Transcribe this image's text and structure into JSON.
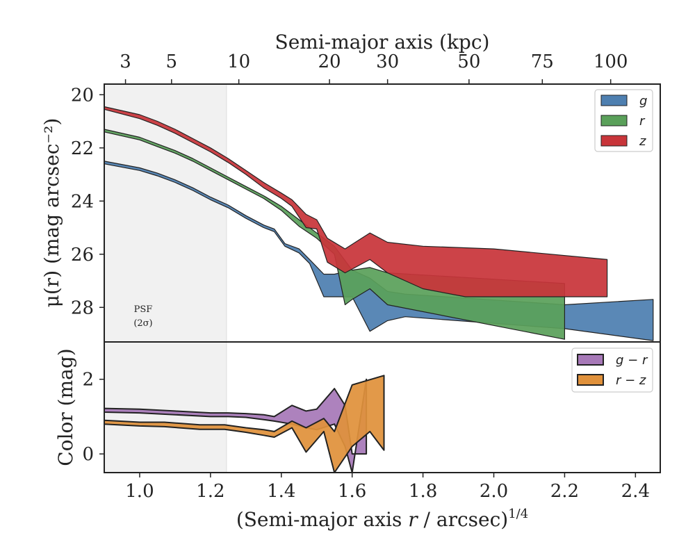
{
  "chart_data": [
    {
      "type": "area",
      "panel": "surface-brightness",
      "ylabel": "μ(r) (mag arcsec⁻²)",
      "top_xlabel": "Semi-major axis (kpc)",
      "top_ticks_kpc": [
        3,
        5,
        10,
        20,
        30,
        50,
        75,
        100
      ],
      "ylim": [
        29.3,
        19.6
      ],
      "y_inverted": true,
      "yticks": [
        20,
        22,
        24,
        26,
        28
      ],
      "legend_position": "top-right",
      "annotation": {
        "line1": "PSF",
        "line2": "(2σ)"
      },
      "psf_shade_xmax": 1.245,
      "series": [
        {
          "name": "g",
          "color": "#4e7fb0",
          "upper": [
            [
              0.9,
              22.5
            ],
            [
              1.0,
              22.75
            ],
            [
              1.05,
              22.95
            ],
            [
              1.1,
              23.2
            ],
            [
              1.15,
              23.5
            ],
            [
              1.2,
              23.85
            ],
            [
              1.25,
              24.15
            ],
            [
              1.3,
              24.55
            ],
            [
              1.35,
              24.9
            ],
            [
              1.38,
              25.05
            ],
            [
              1.41,
              25.6
            ],
            [
              1.45,
              25.8
            ],
            [
              1.48,
              26.2
            ],
            [
              1.52,
              26.75
            ],
            [
              1.55,
              26.75
            ],
            [
              1.6,
              26.6
            ],
            [
              1.65,
              26.9
            ],
            [
              1.7,
              27.4
            ],
            [
              1.75,
              27.5
            ],
            [
              2.2,
              27.9
            ],
            [
              2.45,
              27.7
            ]
          ],
          "lower": [
            [
              0.9,
              22.6
            ],
            [
              1.0,
              22.85
            ],
            [
              1.05,
              23.05
            ],
            [
              1.1,
              23.3
            ],
            [
              1.15,
              23.6
            ],
            [
              1.2,
              23.95
            ],
            [
              1.25,
              24.25
            ],
            [
              1.3,
              24.65
            ],
            [
              1.35,
              25.0
            ],
            [
              1.38,
              25.15
            ],
            [
              1.41,
              25.7
            ],
            [
              1.45,
              25.95
            ],
            [
              1.48,
              26.35
            ],
            [
              1.52,
              27.6
            ],
            [
              1.55,
              27.6
            ],
            [
              1.6,
              27.6
            ],
            [
              1.65,
              28.9
            ],
            [
              1.7,
              28.5
            ],
            [
              1.75,
              28.35
            ],
            [
              2.2,
              28.8
            ],
            [
              2.45,
              29.25
            ]
          ]
        },
        {
          "name": "r",
          "color": "#5aa05a",
          "upper": [
            [
              0.9,
              21.3
            ],
            [
              1.0,
              21.6
            ],
            [
              1.05,
              21.85
            ],
            [
              1.1,
              22.1
            ],
            [
              1.15,
              22.4
            ],
            [
              1.2,
              22.75
            ],
            [
              1.25,
              23.1
            ],
            [
              1.3,
              23.45
            ],
            [
              1.35,
              23.8
            ],
            [
              1.4,
              24.2
            ],
            [
              1.45,
              24.7
            ],
            [
              1.5,
              25.2
            ],
            [
              1.55,
              25.7
            ],
            [
              1.6,
              26.6
            ],
            [
              1.65,
              26.5
            ],
            [
              1.7,
              26.7
            ],
            [
              2.2,
              27.1
            ]
          ],
          "lower": [
            [
              0.9,
              21.4
            ],
            [
              1.0,
              21.7
            ],
            [
              1.05,
              21.95
            ],
            [
              1.1,
              22.2
            ],
            [
              1.15,
              22.5
            ],
            [
              1.2,
              22.85
            ],
            [
              1.25,
              23.2
            ],
            [
              1.3,
              23.55
            ],
            [
              1.35,
              23.9
            ],
            [
              1.4,
              24.35
            ],
            [
              1.45,
              24.95
            ],
            [
              1.5,
              25.4
            ],
            [
              1.55,
              26.0
            ],
            [
              1.58,
              27.9
            ],
            [
              1.6,
              27.7
            ],
            [
              1.65,
              27.3
            ],
            [
              1.7,
              27.9
            ],
            [
              2.2,
              29.2
            ]
          ]
        },
        {
          "name": "z",
          "color": "#c8353a",
          "upper": [
            [
              0.9,
              20.45
            ],
            [
              1.0,
              20.75
            ],
            [
              1.05,
              21.0
            ],
            [
              1.1,
              21.3
            ],
            [
              1.15,
              21.65
            ],
            [
              1.2,
              22.0
            ],
            [
              1.25,
              22.4
            ],
            [
              1.3,
              22.85
            ],
            [
              1.35,
              23.3
            ],
            [
              1.4,
              23.7
            ],
            [
              1.43,
              23.95
            ],
            [
              1.47,
              24.5
            ],
            [
              1.5,
              24.7
            ],
            [
              1.53,
              25.4
            ],
            [
              1.58,
              25.8
            ],
            [
              1.65,
              25.2
            ],
            [
              1.7,
              25.55
            ],
            [
              1.8,
              25.7
            ],
            [
              2.0,
              25.8
            ],
            [
              2.32,
              26.2
            ]
          ],
          "lower": [
            [
              0.9,
              20.55
            ],
            [
              1.0,
              20.9
            ],
            [
              1.05,
              21.15
            ],
            [
              1.1,
              21.45
            ],
            [
              1.15,
              21.8
            ],
            [
              1.2,
              22.15
            ],
            [
              1.25,
              22.55
            ],
            [
              1.3,
              23.0
            ],
            [
              1.35,
              23.5
            ],
            [
              1.4,
              23.9
            ],
            [
              1.43,
              24.2
            ],
            [
              1.47,
              25.0
            ],
            [
              1.5,
              25.05
            ],
            [
              1.53,
              26.3
            ],
            [
              1.58,
              26.7
            ],
            [
              1.65,
              26.2
            ],
            [
              1.7,
              26.7
            ],
            [
              1.8,
              27.3
            ],
            [
              1.92,
              27.6
            ],
            [
              2.32,
              27.6
            ]
          ]
        }
      ]
    },
    {
      "type": "area",
      "panel": "color",
      "xlabel_main": "(Semi-major axis ",
      "xlabel_var": "r",
      "xlabel_rest": " / arcsec)",
      "xlabel_sup": "1/4",
      "ylabel": "Color (mag)",
      "xlim": [
        0.9,
        2.47
      ],
      "xticks": [
        1.0,
        1.2,
        1.4,
        1.6,
        1.8,
        2.0,
        2.2,
        2.4
      ],
      "xtick_labels": [
        "1.0",
        "1.2",
        "1.4",
        "1.6",
        "1.8",
        "2.0",
        "2.2",
        "2.4"
      ],
      "ylim": [
        -0.5,
        3.0
      ],
      "yticks": [
        0,
        2
      ],
      "legend_position": "top-right",
      "series": [
        {
          "name": "g − r",
          "color": "#a779b8",
          "upper": [
            [
              0.9,
              1.22
            ],
            [
              1.0,
              1.2
            ],
            [
              1.1,
              1.15
            ],
            [
              1.2,
              1.1
            ],
            [
              1.25,
              1.1
            ],
            [
              1.3,
              1.08
            ],
            [
              1.35,
              1.05
            ],
            [
              1.38,
              1.0
            ],
            [
              1.43,
              1.3
            ],
            [
              1.47,
              1.15
            ],
            [
              1.5,
              1.2
            ],
            [
              1.55,
              1.75
            ],
            [
              1.58,
              1.3
            ],
            [
              1.6,
              0.0
            ],
            [
              1.64,
              0.0
            ]
          ],
          "lower": [
            [
              0.9,
              1.12
            ],
            [
              1.0,
              1.1
            ],
            [
              1.1,
              1.05
            ],
            [
              1.2,
              1.0
            ],
            [
              1.25,
              1.0
            ],
            [
              1.3,
              0.98
            ],
            [
              1.35,
              0.92
            ],
            [
              1.38,
              0.88
            ],
            [
              1.43,
              0.8
            ],
            [
              1.47,
              0.7
            ],
            [
              1.5,
              0.65
            ],
            [
              1.55,
              0.8
            ],
            [
              1.58,
              0.2
            ],
            [
              1.6,
              -0.5
            ],
            [
              1.64,
              2.0
            ]
          ]
        },
        {
          "name": "r − z",
          "color": "#e0913b",
          "upper": [
            [
              0.9,
              0.9
            ],
            [
              1.0,
              0.85
            ],
            [
              1.07,
              0.85
            ],
            [
              1.17,
              0.78
            ],
            [
              1.24,
              0.78
            ],
            [
              1.3,
              0.7
            ],
            [
              1.35,
              0.65
            ],
            [
              1.38,
              0.6
            ],
            [
              1.43,
              0.88
            ],
            [
              1.47,
              0.7
            ],
            [
              1.52,
              0.95
            ],
            [
              1.55,
              0.6
            ],
            [
              1.6,
              1.85
            ],
            [
              1.69,
              2.1
            ]
          ],
          "lower": [
            [
              0.9,
              0.8
            ],
            [
              1.0,
              0.75
            ],
            [
              1.07,
              0.73
            ],
            [
              1.17,
              0.66
            ],
            [
              1.24,
              0.66
            ],
            [
              1.3,
              0.58
            ],
            [
              1.35,
              0.5
            ],
            [
              1.38,
              0.45
            ],
            [
              1.43,
              0.7
            ],
            [
              1.47,
              0.05
            ],
            [
              1.52,
              0.6
            ],
            [
              1.55,
              -0.5
            ],
            [
              1.6,
              0.2
            ],
            [
              1.65,
              0.6
            ],
            [
              1.69,
              0.1
            ]
          ]
        }
      ]
    }
  ]
}
